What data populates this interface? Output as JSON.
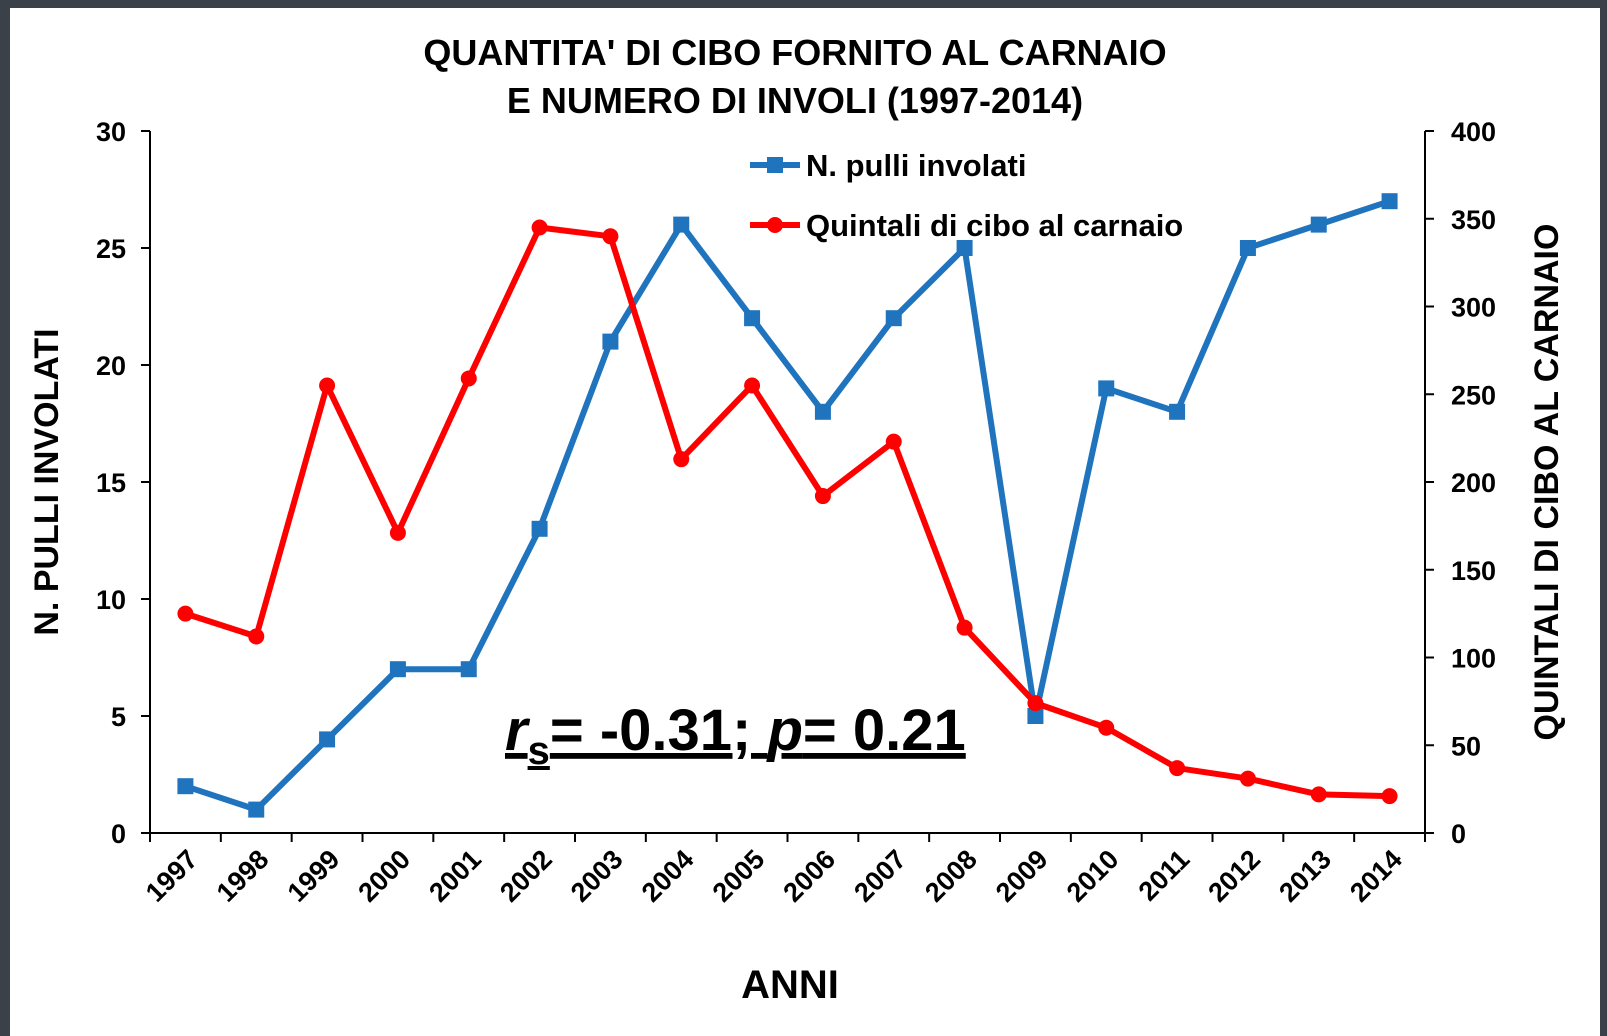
{
  "chart_data": {
    "type": "line",
    "title": [
      "QUANTITA' DI CIBO FORNITO AL CARNAIO",
      "E NUMERO DI INVOLI (1997-2014)"
    ],
    "x_label": "ANNI",
    "y_label": "N. PULLI INVOLATI",
    "y2_label": "QUINTALI DI CIBO AL CARNAIO",
    "categories": [
      "1997",
      "1998",
      "1999",
      "2000",
      "2001",
      "2002",
      "2003",
      "2004",
      "2005",
      "2006",
      "2007",
      "2008",
      "2009",
      "2010",
      "2011",
      "2012",
      "2013",
      "2014"
    ],
    "series": [
      {
        "name": "N. pulli involati",
        "color": "#1f74bd",
        "marker": "square",
        "values": [
          2,
          1,
          4,
          7,
          7,
          13,
          21,
          26,
          22,
          18,
          22,
          25,
          5,
          19,
          18,
          25,
          26,
          27
        ]
      },
      {
        "name": "Quintali di cibo al carnaio",
        "color": "#ff0000",
        "marker": "circle",
        "axis": "y2",
        "values": [
          125,
          112,
          255,
          171,
          259,
          345,
          340,
          213,
          255,
          192,
          223,
          117,
          74,
          60,
          37,
          31,
          22,
          21
        ]
      }
    ],
    "ylim": [
      0,
      30
    ],
    "yticks": [
      0,
      5,
      10,
      15,
      20,
      25,
      30
    ],
    "y2lim": [
      0,
      400
    ],
    "y2ticks": [
      0,
      50,
      100,
      150,
      200,
      250,
      300,
      350,
      400
    ],
    "legend": "top",
    "annotation": {
      "r": "r",
      "sub": "s",
      "mid": "= -0.31; ",
      "p": "p",
      "end": "= 0.21"
    }
  }
}
